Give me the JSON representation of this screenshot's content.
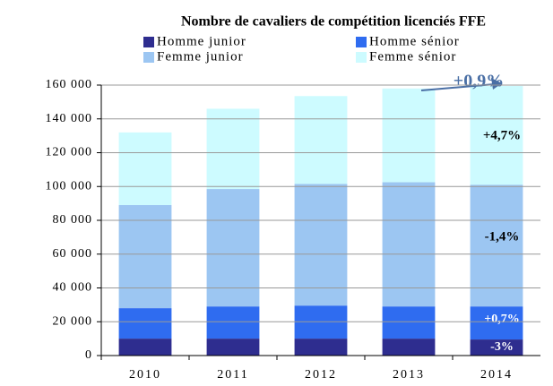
{
  "chart_data": {
    "type": "stacked_bar",
    "title": "Nombre de cavaliers de compétition licenciés FFE",
    "categories": [
      "2010",
      "2011",
      "2012",
      "2013",
      "2014"
    ],
    "series": [
      {
        "name": "Homme junior",
        "color": "#2e2d8f",
        "values": [
          10000,
          10000,
          10000,
          10000,
          9500
        ]
      },
      {
        "name": "Homme sénior",
        "color": "#2f6cf0",
        "values": [
          18000,
          19000,
          19500,
          19000,
          19500
        ]
      },
      {
        "name": "Femme junior",
        "color": "#9cc6f2",
        "values": [
          61000,
          69500,
          72000,
          73500,
          72000
        ]
      },
      {
        "name": "Femme sénior",
        "color": "#cdfbff",
        "values": [
          43000,
          47500,
          52000,
          55500,
          58500
        ]
      }
    ],
    "ylim": [
      0,
      160000
    ],
    "yticks": [
      0,
      {
        "value": 20000,
        "label": "20 000"
      },
      {
        "value": 40000,
        "label": "40 000"
      },
      {
        "value": 60000,
        "label": "60 000"
      },
      {
        "value": 80000,
        "label": "80 000"
      },
      {
        "value": 100000,
        "label": "100 000"
      },
      {
        "value": 120000,
        "label": "120 000"
      },
      {
        "value": 140000,
        "label": "140 000"
      },
      {
        "value": 160000,
        "label": "160 000"
      }
    ],
    "grid": true,
    "annotations": [
      "+0,9%",
      "+4,7%",
      "-1,4%",
      "+0,7%",
      "-3%"
    ]
  }
}
